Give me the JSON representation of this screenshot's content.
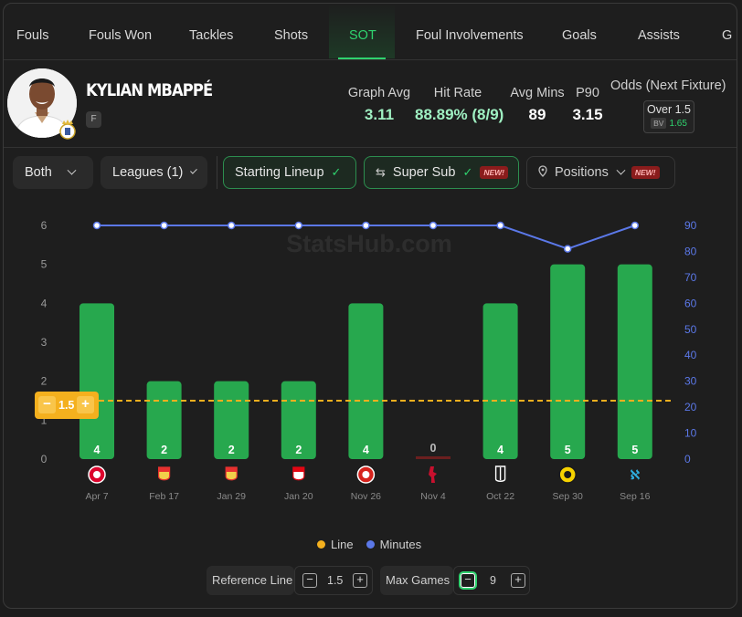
{
  "tabs": [
    {
      "label": "Fouls",
      "active": false
    },
    {
      "label": "Fouls Won",
      "active": false
    },
    {
      "label": "Tackles",
      "active": false
    },
    {
      "label": "Shots",
      "active": false
    },
    {
      "label": "SOT",
      "active": true
    },
    {
      "label": "Foul Involvements",
      "active": false
    },
    {
      "label": "Goals",
      "active": false
    },
    {
      "label": "Assists",
      "active": false
    },
    {
      "label": "G",
      "active": false
    }
  ],
  "player": {
    "name": "KYLIAN MBAPPÉ",
    "position": "F"
  },
  "stats": [
    {
      "label": "Graph Avg",
      "value": "3.11"
    },
    {
      "label": "Hit Rate",
      "value": "88.89% (8/9)"
    },
    {
      "label": "Avg Mins",
      "value": "89"
    },
    {
      "label": "P90",
      "value": "3.15"
    }
  ],
  "odds": {
    "label": "Odds (Next Fixture)",
    "line": "Over 1.5",
    "bv_tag": "BV",
    "bv_value": "1.65"
  },
  "filters": {
    "both": "Both",
    "leagues": "Leagues (1)",
    "starting_lineup": "Starting Lineup",
    "super_sub": "Super Sub",
    "positions": "Positions",
    "new_badge": "NEW!"
  },
  "watermark": "StatsHub.com",
  "chart_data": {
    "type": "bar",
    "categories": [
      "Apr 7",
      "Feb 17",
      "Jan 29",
      "Jan 20",
      "Nov 26",
      "Nov 4",
      "Oct 22",
      "Sep 30",
      "Sep 16"
    ],
    "opponent_icons": [
      "bayern-crest-icon",
      "benfica-crest-icon",
      "benfica-crest-icon",
      "monaco-crest-icon",
      "olympiacos-crest-icon",
      "liverpool-crest-icon",
      "juventus-crest-icon",
      "young-boys-crest-icon",
      "marseille-crest-icon"
    ],
    "series": [
      {
        "name": "SOT",
        "type": "bar",
        "axis": "left",
        "values": [
          4,
          2,
          2,
          2,
          4,
          0,
          4,
          5,
          5
        ],
        "color": "#27a84e"
      },
      {
        "name": "Minutes",
        "type": "line",
        "axis": "right",
        "values": [
          90,
          90,
          90,
          90,
          90,
          90,
          90,
          81,
          90
        ],
        "color": "#5b78e8"
      }
    ],
    "reference_line": {
      "name": "Line",
      "value": 1.5,
      "color": "#f4b01e"
    },
    "y_left": {
      "min": 0,
      "max": 6,
      "ticks": [
        0,
        1,
        2,
        3,
        4,
        5,
        6
      ]
    },
    "y_right": {
      "min": 0,
      "max": 90,
      "ticks": [
        0,
        10,
        20,
        30,
        40,
        50,
        60,
        70,
        80,
        90
      ],
      "color": "#5b78e8"
    },
    "legend": [
      "Line",
      "Minutes"
    ],
    "legend_placement": "bottom",
    "grid": false
  },
  "controls": {
    "reference_line_label": "Reference Line",
    "reference_line_value": "1.5",
    "max_games_label": "Max Games",
    "max_games_value": "9",
    "minus": "−",
    "plus": "+"
  },
  "colors": {
    "accent": "#2fd26e",
    "bar": "#27a84e",
    "minutes": "#5b78e8",
    "line": "#f4b01e",
    "background": "#1e1e1e"
  }
}
